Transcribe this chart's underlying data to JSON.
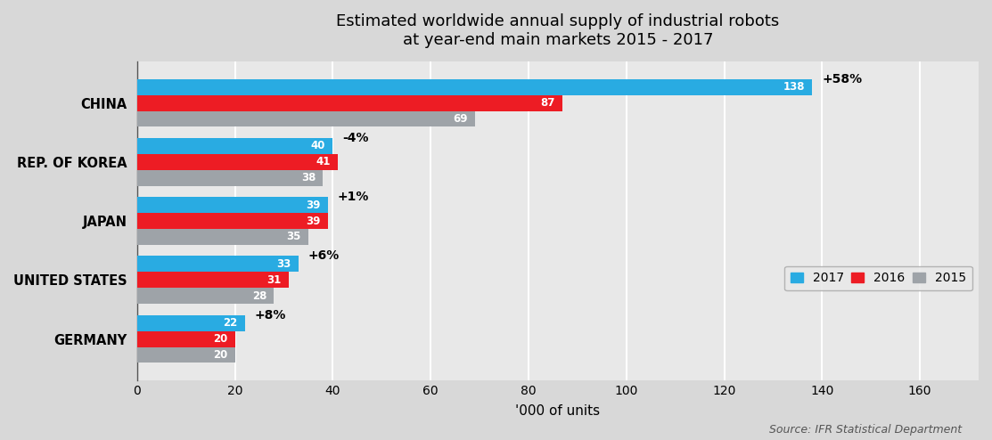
{
  "title_line1": "Estimated worldwide annual supply of industrial robots",
  "title_line2": "at year-end main markets 2015 - 2017",
  "categories": [
    "GERMANY",
    "UNITED STATES",
    "JAPAN",
    "REP. OF KOREA",
    "CHINA"
  ],
  "values_2017": [
    22,
    33,
    39,
    40,
    138
  ],
  "values_2016": [
    20,
    31,
    39,
    41,
    87
  ],
  "values_2015": [
    20,
    28,
    35,
    38,
    69
  ],
  "growth_labels": [
    "+8%",
    "+6%",
    "+1%",
    "-4%",
    "+58%"
  ],
  "color_2017": "#29ABE2",
  "color_2016": "#ED1C24",
  "color_2015": "#9EA3A8",
  "xlabel": "'000 of units",
  "xlim": [
    0,
    172
  ],
  "xticks": [
    0,
    20,
    40,
    60,
    80,
    100,
    120,
    140,
    160
  ],
  "source_text": "Source: IFR Statistical Department",
  "background_color": "#D8D8D8",
  "plot_bg_color": "#E8E8E8",
  "title_fontsize": 13,
  "bar_height": 0.27,
  "legend_labels": [
    "2017",
    "2016",
    "2015"
  ]
}
